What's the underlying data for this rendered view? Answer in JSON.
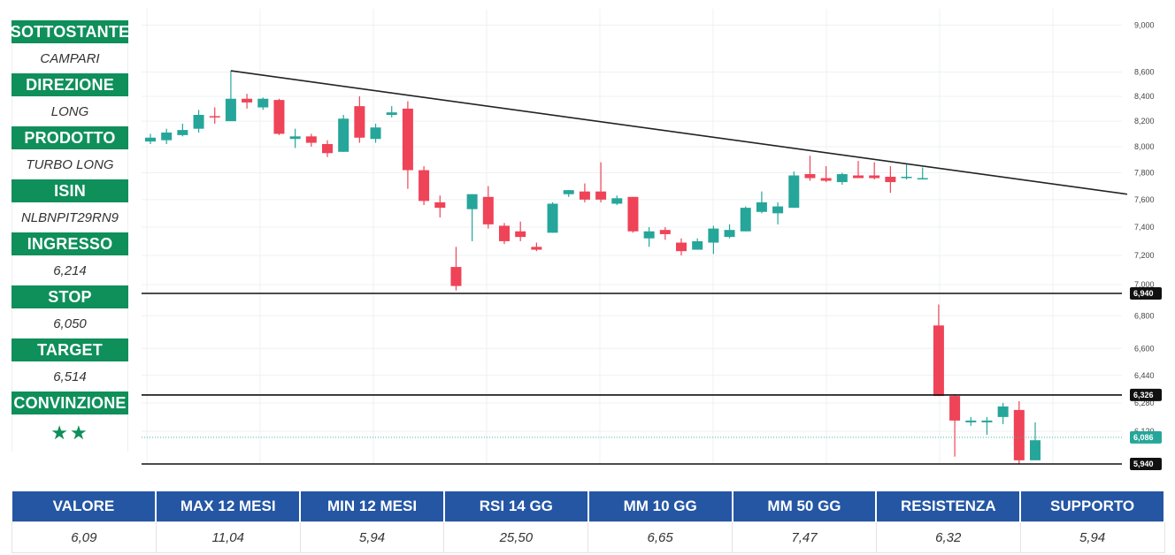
{
  "sidebar": [
    {
      "label": "SOTTOSTANTE",
      "value": "CAMPARI"
    },
    {
      "label": "DIREZIONE",
      "value": "LONG"
    },
    {
      "label": "PRODOTTO",
      "value": "TURBO LONG"
    },
    {
      "label": "ISIN",
      "value": "NLBNPIT29RN9"
    },
    {
      "label": "INGRESSO",
      "value": "6,214"
    },
    {
      "label": "STOP",
      "value": "6,050"
    },
    {
      "label": "TARGET",
      "value": "6,514"
    },
    {
      "label": "CONVINZIONE",
      "value": "★★"
    }
  ],
  "colors": {
    "accent_green": "#0f8f5a",
    "header_blue": "#2456a4",
    "up": "#26a69a",
    "down": "#ef4357"
  },
  "stats": {
    "headers": [
      "VALORE",
      "MAX 12 MESI",
      "MIN 12 MESI",
      "RSI 14 GG",
      "MM 10 GG",
      "MM 50 GG",
      "RESISTENZA",
      "SUPPORTO"
    ],
    "values": [
      "6,09",
      "11,04",
      "5,94",
      "25,50",
      "6,65",
      "7,47",
      "6,32",
      "5,94"
    ]
  },
  "chart_data": {
    "type": "candlestick",
    "scale": "log",
    "y_ticks_upper": [
      "9,000",
      "8,600",
      "8,400",
      "8,200",
      "8,000",
      "7,800",
      "7,600",
      "7,400",
      "7,200",
      "7,000"
    ],
    "y_ticks_lower": [
      "6,800",
      "6,600",
      "6,440",
      "6,280",
      "6,120"
    ],
    "candles": [
      {
        "o": 8.04,
        "h": 8.1,
        "l": 8.02,
        "c": 8.07
      },
      {
        "o": 8.05,
        "h": 8.14,
        "l": 8.02,
        "c": 8.11
      },
      {
        "o": 8.09,
        "h": 8.18,
        "l": 8.08,
        "c": 8.13
      },
      {
        "o": 8.14,
        "h": 8.29,
        "l": 8.11,
        "c": 8.25
      },
      {
        "o": 8.24,
        "h": 8.31,
        "l": 8.18,
        "c": 8.23
      },
      {
        "o": 8.2,
        "h": 8.61,
        "l": 8.2,
        "c": 8.38
      },
      {
        "o": 8.38,
        "h": 8.42,
        "l": 8.3,
        "c": 8.35
      },
      {
        "o": 8.31,
        "h": 8.39,
        "l": 8.29,
        "c": 8.38
      },
      {
        "o": 8.37,
        "h": 8.38,
        "l": 8.09,
        "c": 8.1
      },
      {
        "o": 8.06,
        "h": 8.14,
        "l": 7.99,
        "c": 8.08
      },
      {
        "o": 8.08,
        "h": 8.1,
        "l": 8.0,
        "c": 8.03
      },
      {
        "o": 8.02,
        "h": 8.05,
        "l": 7.92,
        "c": 7.95
      },
      {
        "o": 7.96,
        "h": 8.25,
        "l": 7.96,
        "c": 8.22
      },
      {
        "o": 8.32,
        "h": 8.4,
        "l": 8.03,
        "c": 8.07
      },
      {
        "o": 8.06,
        "h": 8.18,
        "l": 8.03,
        "c": 8.15
      },
      {
        "o": 8.25,
        "h": 8.32,
        "l": 8.23,
        "c": 8.27
      },
      {
        "o": 8.3,
        "h": 8.36,
        "l": 7.68,
        "c": 7.82
      },
      {
        "o": 7.82,
        "h": 7.85,
        "l": 7.56,
        "c": 7.59
      },
      {
        "o": 7.58,
        "h": 7.63,
        "l": 7.47,
        "c": 7.54
      },
      {
        "o": 7.12,
        "h": 7.26,
        "l": 6.96,
        "c": 6.99
      },
      {
        "o": 7.53,
        "h": 7.64,
        "l": 7.3,
        "c": 7.64
      },
      {
        "o": 7.62,
        "h": 7.7,
        "l": 7.39,
        "c": 7.42
      },
      {
        "o": 7.41,
        "h": 7.43,
        "l": 7.28,
        "c": 7.3
      },
      {
        "o": 7.37,
        "h": 7.44,
        "l": 7.3,
        "c": 7.33
      },
      {
        "o": 7.26,
        "h": 7.29,
        "l": 7.23,
        "c": 7.24
      },
      {
        "o": 7.36,
        "h": 7.58,
        "l": 7.36,
        "c": 7.57
      },
      {
        "o": 7.64,
        "h": 7.67,
        "l": 7.62,
        "c": 7.67
      },
      {
        "o": 7.66,
        "h": 7.72,
        "l": 7.58,
        "c": 7.6
      },
      {
        "o": 7.66,
        "h": 7.88,
        "l": 7.58,
        "c": 7.6
      },
      {
        "o": 7.57,
        "h": 7.63,
        "l": 7.56,
        "c": 7.61
      },
      {
        "o": 7.62,
        "h": 7.62,
        "l": 7.36,
        "c": 7.37
      },
      {
        "o": 7.32,
        "h": 7.4,
        "l": 7.26,
        "c": 7.37
      },
      {
        "o": 7.38,
        "h": 7.4,
        "l": 7.31,
        "c": 7.35
      },
      {
        "o": 7.29,
        "h": 7.32,
        "l": 7.2,
        "c": 7.23
      },
      {
        "o": 7.24,
        "h": 7.32,
        "l": 7.24,
        "c": 7.3
      },
      {
        "o": 7.29,
        "h": 7.41,
        "l": 7.21,
        "c": 7.39
      },
      {
        "o": 7.33,
        "h": 7.42,
        "l": 7.32,
        "c": 7.38
      },
      {
        "o": 7.37,
        "h": 7.55,
        "l": 7.37,
        "c": 7.54
      },
      {
        "o": 7.51,
        "h": 7.66,
        "l": 7.5,
        "c": 7.58
      },
      {
        "o": 7.5,
        "h": 7.58,
        "l": 7.42,
        "c": 7.55
      },
      {
        "o": 7.54,
        "h": 7.81,
        "l": 7.54,
        "c": 7.78
      },
      {
        "o": 7.79,
        "h": 7.93,
        "l": 7.74,
        "c": 7.76
      },
      {
        "o": 7.76,
        "h": 7.85,
        "l": 7.73,
        "c": 7.74
      },
      {
        "o": 7.73,
        "h": 7.8,
        "l": 7.71,
        "c": 7.79
      },
      {
        "o": 7.78,
        "h": 7.89,
        "l": 7.76,
        "c": 7.76
      },
      {
        "o": 7.78,
        "h": 7.88,
        "l": 7.75,
        "c": 7.76
      },
      {
        "o": 7.77,
        "h": 7.85,
        "l": 7.65,
        "c": 7.73
      },
      {
        "o": 7.76,
        "h": 7.87,
        "l": 7.75,
        "c": 7.77
      },
      {
        "o": 7.76,
        "h": 7.84,
        "l": 7.75,
        "c": 7.76
      },
      {
        "o": 6.74,
        "h": 6.87,
        "l": 6.32,
        "c": 6.32
      },
      {
        "o": 6.32,
        "h": 6.33,
        "l": 5.98,
        "c": 6.18
      },
      {
        "o": 6.17,
        "h": 6.2,
        "l": 6.15,
        "c": 6.18
      },
      {
        "o": 6.17,
        "h": 6.2,
        "l": 6.1,
        "c": 6.18
      },
      {
        "o": 6.2,
        "h": 6.28,
        "l": 6.16,
        "c": 6.26
      },
      {
        "o": 6.24,
        "h": 6.29,
        "l": 5.94,
        "c": 5.96
      },
      {
        "o": 5.96,
        "h": 6.17,
        "l": 5.96,
        "c": 6.07
      }
    ],
    "horizontal_lines": [
      {
        "value": 6.94,
        "label": "6,940",
        "style": "solid"
      },
      {
        "value": 6.326,
        "label": "6,326",
        "style": "solid"
      },
      {
        "value": 6.086,
        "label": "6,086",
        "style": "dotted"
      },
      {
        "value": 5.94,
        "label": "5,940",
        "style": "solid"
      }
    ],
    "trendline": {
      "from": {
        "candle": 5,
        "value": 8.61
      },
      "to_value": 7.64,
      "to_edge": "right"
    },
    "grid": true,
    "axis_position": "right"
  }
}
